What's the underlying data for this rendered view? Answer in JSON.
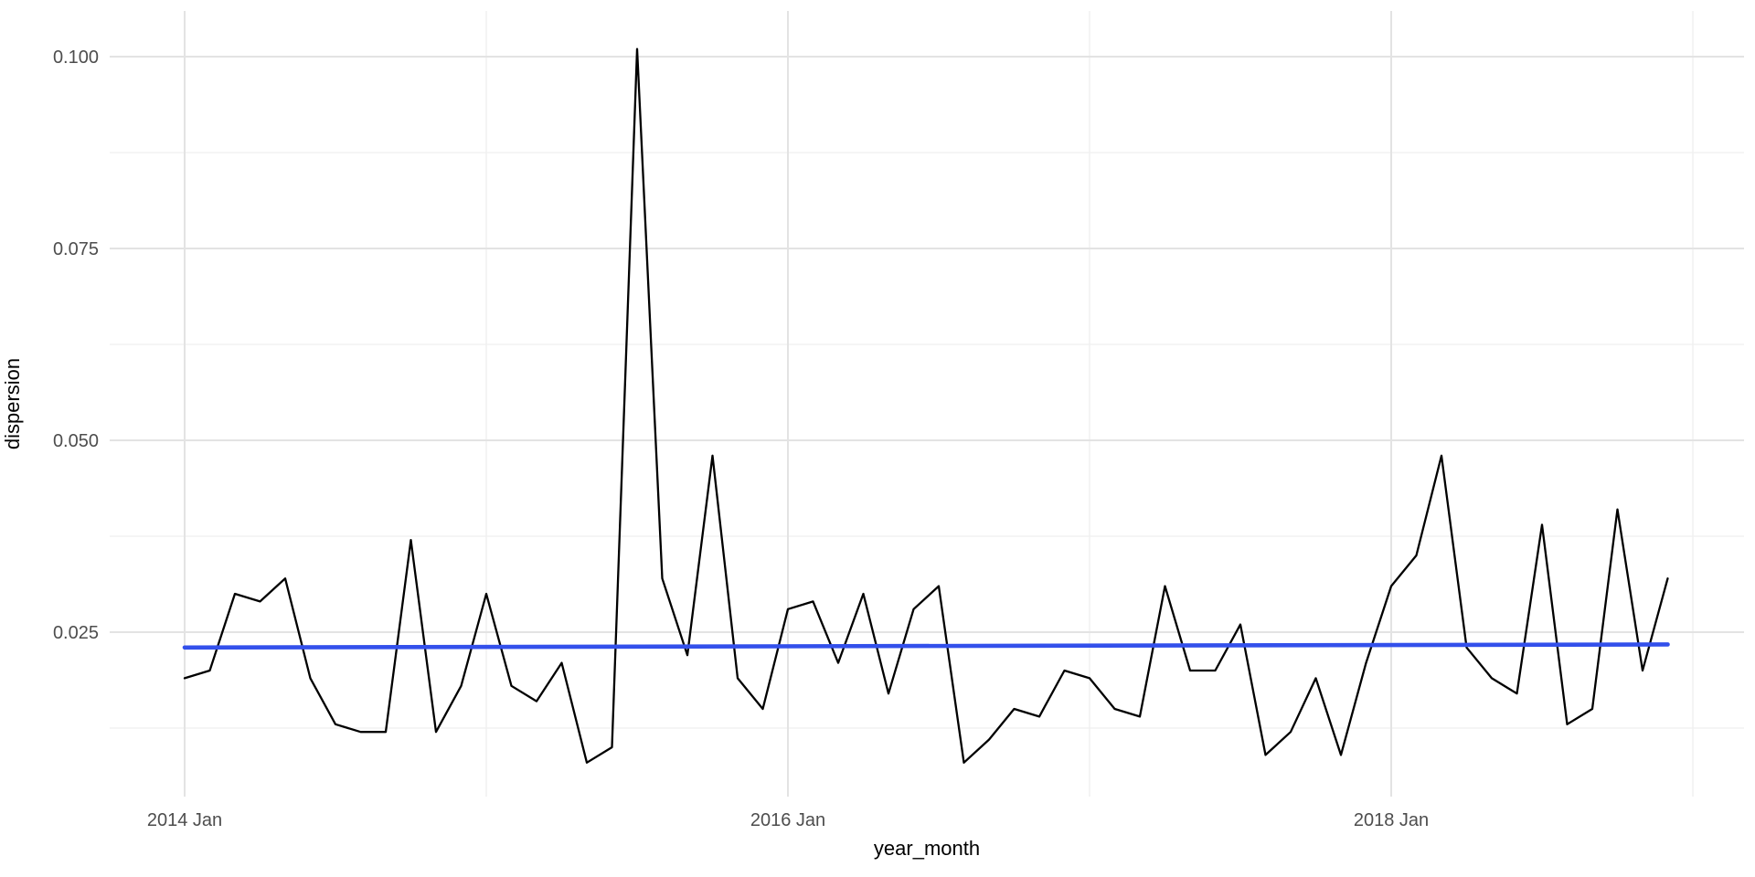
{
  "chart_data": {
    "type": "line",
    "title": "",
    "xlabel": "year_month",
    "ylabel": "dispersion",
    "grid": true,
    "legend": "none",
    "background_color": "#FFFFFF",
    "style": {
      "grid_major_color": "#E3E3E3",
      "grid_minor_color": "#EFEFEF",
      "tick_label_color": "#4D4D4D",
      "axis_title_color": "#000000"
    },
    "x": [
      "2014-01",
      "2014-02",
      "2014-03",
      "2014-04",
      "2014-05",
      "2014-06",
      "2014-07",
      "2014-08",
      "2014-09",
      "2014-10",
      "2014-11",
      "2014-12",
      "2015-01",
      "2015-02",
      "2015-03",
      "2015-04",
      "2015-05",
      "2015-06",
      "2015-07",
      "2015-08",
      "2015-09",
      "2015-10",
      "2015-11",
      "2015-12",
      "2016-01",
      "2016-02",
      "2016-03",
      "2016-04",
      "2016-05",
      "2016-06",
      "2016-07",
      "2016-08",
      "2016-09",
      "2016-10",
      "2016-11",
      "2016-12",
      "2017-01",
      "2017-02",
      "2017-03",
      "2017-04",
      "2017-05",
      "2017-06",
      "2017-07",
      "2017-08",
      "2017-09",
      "2017-10",
      "2017-11",
      "2017-12",
      "2018-01",
      "2018-02",
      "2018-03",
      "2018-04",
      "2018-05",
      "2018-06",
      "2018-07",
      "2018-08",
      "2018-09",
      "2018-10",
      "2018-11",
      "2018-12"
    ],
    "series": [
      {
        "name": "dispersion",
        "color": "#000000",
        "values": [
          0.019,
          0.02,
          0.03,
          0.029,
          0.032,
          0.019,
          0.013,
          0.012,
          0.012,
          0.037,
          0.012,
          0.018,
          0.03,
          0.018,
          0.016,
          0.021,
          0.008,
          0.01,
          0.101,
          0.032,
          0.022,
          0.048,
          0.019,
          0.015,
          0.028,
          0.029,
          0.021,
          0.03,
          0.017,
          0.028,
          0.031,
          0.008,
          0.011,
          0.015,
          0.014,
          0.02,
          0.019,
          0.015,
          0.014,
          0.031,
          0.02,
          0.02,
          0.026,
          0.009,
          0.012,
          0.019,
          0.009,
          0.021,
          0.031,
          0.035,
          0.048,
          0.023,
          0.019,
          0.017,
          0.039,
          0.013,
          0.015,
          0.041,
          0.02,
          0.032
        ]
      }
    ],
    "trend_line": {
      "name": "linear-fit",
      "color": "#3350EB",
      "y_start": 0.023,
      "y_end": 0.0234
    },
    "y_axis": {
      "label": "dispersion",
      "range": [
        0.004,
        0.106
      ],
      "ticks": [
        {
          "value": 0.025,
          "label": "0.025"
        },
        {
          "value": 0.05,
          "label": "0.050"
        },
        {
          "value": 0.075,
          "label": "0.075"
        },
        {
          "value": 0.1,
          "label": "0.100"
        }
      ],
      "minor_tick_values": [
        0.0125,
        0.0375,
        0.0625,
        0.0875
      ]
    },
    "x_axis": {
      "label": "year_month",
      "ticks": [
        {
          "month": "2014-01",
          "label": "2014 Jan"
        },
        {
          "month": "2016-01",
          "label": "2016 Jan"
        },
        {
          "month": "2018-01",
          "label": "2018 Jan"
        }
      ],
      "minor_tick_months": [
        "2015-01",
        "2017-01",
        "2019-01"
      ]
    }
  }
}
